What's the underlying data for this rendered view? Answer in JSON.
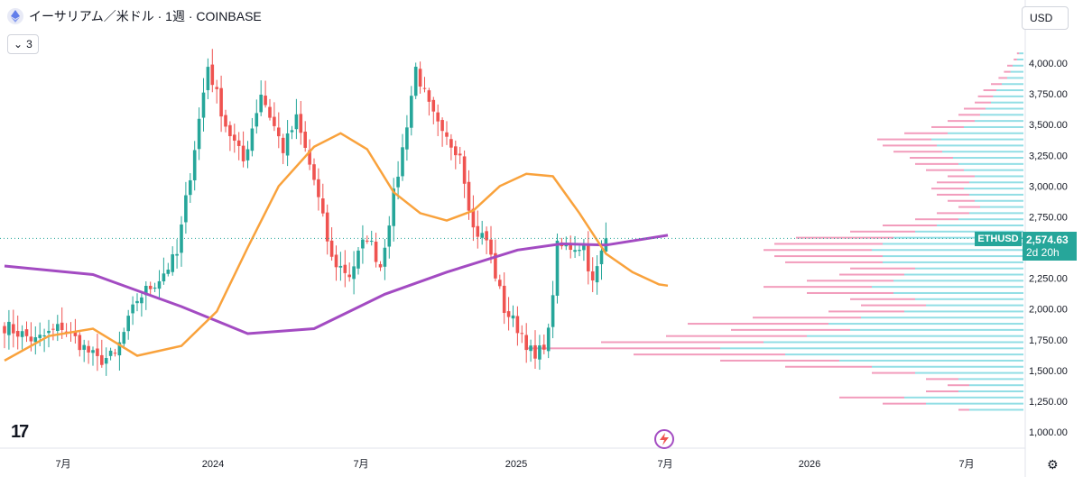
{
  "header": {
    "title": "イーサリアム／米ドル · 1週 · COINBASE",
    "indicator_count": "3",
    "currency": "USD"
  },
  "price_badge": {
    "symbol": "ETHUSD",
    "price": "2,574.63",
    "countdown": "2d 20h"
  },
  "colors": {
    "up": "#26a69a",
    "down": "#ef5350",
    "ma_short": "#f9a23c",
    "ma_long": "#a34bc2",
    "vp_up": "#7fd8e0",
    "vp_down": "#f08bb0"
  },
  "icons": [
    "ethereum-icon",
    "chevron-down-icon",
    "tradingview-logo-icon",
    "lightning-icon",
    "gear-icon"
  ],
  "chart_data": {
    "type": "candlestick",
    "x_ticks": [
      "7月",
      "2024",
      "7月",
      "2025",
      "7月",
      "2026",
      "7月"
    ],
    "y_ticks": [
      "1,000.00",
      "1,250.00",
      "1,500.00",
      "1,750.00",
      "2,000.00",
      "2,250.00",
      "2,500.00",
      "2,750.00",
      "3,000.00",
      "3,250.00",
      "3,500.00",
      "3,750.00",
      "4,000.00"
    ],
    "ylim": [
      1000,
      4250
    ],
    "last_price": 2574.63,
    "grid": false,
    "legend": "none",
    "segments": [
      {
        "weeks": 8,
        "start": 1880,
        "end": 1740
      },
      {
        "weeks": 6,
        "start": 1740,
        "end": 1860
      },
      {
        "weeks": 8,
        "start": 1860,
        "end": 1580
      },
      {
        "weeks": 4,
        "start": 1580,
        "end": 1620
      },
      {
        "weeks": 5,
        "start": 1620,
        "end": 2080
      },
      {
        "weeks": 5,
        "start": 2080,
        "end": 2250
      },
      {
        "weeks": 4,
        "start": 2250,
        "end": 2440
      },
      {
        "weeks": 7,
        "start": 2440,
        "end": 3980
      },
      {
        "weeks": 4,
        "start": 3980,
        "end": 3500
      },
      {
        "weeks": 4,
        "start": 3500,
        "end": 3200
      },
      {
        "weeks": 4,
        "start": 3200,
        "end": 3760
      },
      {
        "weeks": 5,
        "start": 3760,
        "end": 3300
      },
      {
        "weeks": 3,
        "start": 3300,
        "end": 3540
      },
      {
        "weeks": 4,
        "start": 3540,
        "end": 3050
      },
      {
        "weeks": 4,
        "start": 3050,
        "end": 2400
      },
      {
        "weeks": 4,
        "start": 2400,
        "end": 2280
      },
      {
        "weeks": 4,
        "start": 2280,
        "end": 2600
      },
      {
        "weeks": 3,
        "start": 2600,
        "end": 2350
      },
      {
        "weeks": 5,
        "start": 2350,
        "end": 3300
      },
      {
        "weeks": 3,
        "start": 3300,
        "end": 3960
      },
      {
        "weeks": 3,
        "start": 3960,
        "end": 3640
      },
      {
        "weeks": 3,
        "start": 3640,
        "end": 3400
      },
      {
        "weeks": 4,
        "start": 3400,
        "end": 3280
      },
      {
        "weeks": 3,
        "start": 3280,
        "end": 2650
      },
      {
        "weeks": 3,
        "start": 2650,
        "end": 2560
      },
      {
        "weeks": 4,
        "start": 2560,
        "end": 2000
      },
      {
        "weeks": 4,
        "start": 2000,
        "end": 1800
      },
      {
        "weeks": 3,
        "start": 1800,
        "end": 1580
      },
      {
        "weeks": 3,
        "start": 1580,
        "end": 1800
      },
      {
        "weeks": 2,
        "start": 1800,
        "end": 2500
      },
      {
        "weeks": 6,
        "start": 2500,
        "end": 2520
      },
      {
        "weeks": 2,
        "start": 2520,
        "end": 2200
      },
      {
        "weeks": 3,
        "start": 2200,
        "end": 2575
      }
    ],
    "ma_short": [
      [
        0,
        1580
      ],
      [
        10,
        1780
      ],
      [
        20,
        1840
      ],
      [
        30,
        1620
      ],
      [
        40,
        1700
      ],
      [
        48,
        1980
      ],
      [
        55,
        2500
      ],
      [
        62,
        3000
      ],
      [
        70,
        3320
      ],
      [
        76,
        3430
      ],
      [
        82,
        3300
      ],
      [
        88,
        2950
      ],
      [
        94,
        2780
      ],
      [
        100,
        2720
      ],
      [
        106,
        2800
      ],
      [
        112,
        3000
      ],
      [
        118,
        3100
      ],
      [
        124,
        3080
      ],
      [
        130,
        2780
      ],
      [
        136,
        2450
      ],
      [
        142,
        2300
      ],
      [
        148,
        2200
      ],
      [
        150,
        2190
      ]
    ],
    "ma_long": [
      [
        0,
        2350
      ],
      [
        20,
        2280
      ],
      [
        40,
        2020
      ],
      [
        55,
        1800
      ],
      [
        70,
        1840
      ],
      [
        86,
        2120
      ],
      [
        100,
        2300
      ],
      [
        116,
        2480
      ],
      [
        126,
        2530
      ],
      [
        136,
        2520
      ],
      [
        150,
        2600
      ]
    ],
    "volume_profile": [
      {
        "price": 1180,
        "up": 50,
        "down": 10
      },
      {
        "price": 1230,
        "up": 90,
        "down": 40
      },
      {
        "price": 1280,
        "up": 110,
        "down": 60
      },
      {
        "price": 1330,
        "up": 60,
        "down": 30
      },
      {
        "price": 1380,
        "up": 50,
        "down": 20
      },
      {
        "price": 1430,
        "up": 60,
        "down": 30
      },
      {
        "price": 1480,
        "up": 100,
        "down": 40
      },
      {
        "price": 1530,
        "up": 140,
        "down": 80
      },
      {
        "price": 1580,
        "up": 170,
        "down": 110
      },
      {
        "price": 1630,
        "up": 220,
        "down": 140
      },
      {
        "price": 1680,
        "up": 280,
        "down": 180
      },
      {
        "price": 1730,
        "up": 240,
        "down": 150
      },
      {
        "price": 1780,
        "up": 200,
        "down": 130
      },
      {
        "price": 1830,
        "up": 160,
        "down": 110
      },
      {
        "price": 1880,
        "up": 180,
        "down": 130
      },
      {
        "price": 1930,
        "up": 150,
        "down": 100
      },
      {
        "price": 1980,
        "up": 110,
        "down": 70
      },
      {
        "price": 2030,
        "up": 90,
        "down": 60
      },
      {
        "price": 2080,
        "up": 100,
        "down": 60
      },
      {
        "price": 2130,
        "up": 120,
        "down": 80
      },
      {
        "price": 2180,
        "up": 140,
        "down": 100
      },
      {
        "price": 2230,
        "up": 120,
        "down": 80
      },
      {
        "price": 2280,
        "up": 110,
        "down": 60
      },
      {
        "price": 2330,
        "up": 100,
        "down": 60
      },
      {
        "price": 2380,
        "up": 130,
        "down": 90
      },
      {
        "price": 2430,
        "up": 130,
        "down": 100
      },
      {
        "price": 2480,
        "up": 140,
        "down": 100
      },
      {
        "price": 2530,
        "up": 130,
        "down": 100
      },
      {
        "price": 2580,
        "up": 120,
        "down": 90
      },
      {
        "price": 2630,
        "up": 100,
        "down": 60
      },
      {
        "price": 2680,
        "up": 80,
        "down": 50
      },
      {
        "price": 2730,
        "up": 60,
        "down": 40
      },
      {
        "price": 2780,
        "up": 50,
        "down": 30
      },
      {
        "price": 2830,
        "up": 40,
        "down": 20
      },
      {
        "price": 2880,
        "up": 45,
        "down": 25
      },
      {
        "price": 2930,
        "up": 50,
        "down": 30
      },
      {
        "price": 2980,
        "up": 55,
        "down": 30
      },
      {
        "price": 3030,
        "up": 50,
        "down": 30
      },
      {
        "price": 3080,
        "up": 45,
        "down": 25
      },
      {
        "price": 3130,
        "up": 55,
        "down": 35
      },
      {
        "price": 3180,
        "up": 60,
        "down": 40
      },
      {
        "price": 3230,
        "up": 65,
        "down": 40
      },
      {
        "price": 3280,
        "up": 75,
        "down": 45
      },
      {
        "price": 3330,
        "up": 80,
        "down": 50
      },
      {
        "price": 3380,
        "up": 85,
        "down": 50
      },
      {
        "price": 3430,
        "up": 70,
        "down": 40
      },
      {
        "price": 3480,
        "up": 55,
        "down": 30
      },
      {
        "price": 3530,
        "up": 45,
        "down": 25
      },
      {
        "price": 3580,
        "up": 40,
        "down": 20
      },
      {
        "price": 3630,
        "up": 35,
        "down": 20
      },
      {
        "price": 3680,
        "up": 30,
        "down": 15
      },
      {
        "price": 3730,
        "up": 28,
        "down": 14
      },
      {
        "price": 3780,
        "up": 25,
        "down": 12
      },
      {
        "price": 3830,
        "up": 20,
        "down": 10
      },
      {
        "price": 3880,
        "up": 15,
        "down": 8
      },
      {
        "price": 3930,
        "up": 12,
        "down": 6
      },
      {
        "price": 3980,
        "up": 10,
        "down": 5
      },
      {
        "price": 4030,
        "up": 6,
        "down": 3
      },
      {
        "price": 4080,
        "up": 4,
        "down": 2
      }
    ]
  }
}
